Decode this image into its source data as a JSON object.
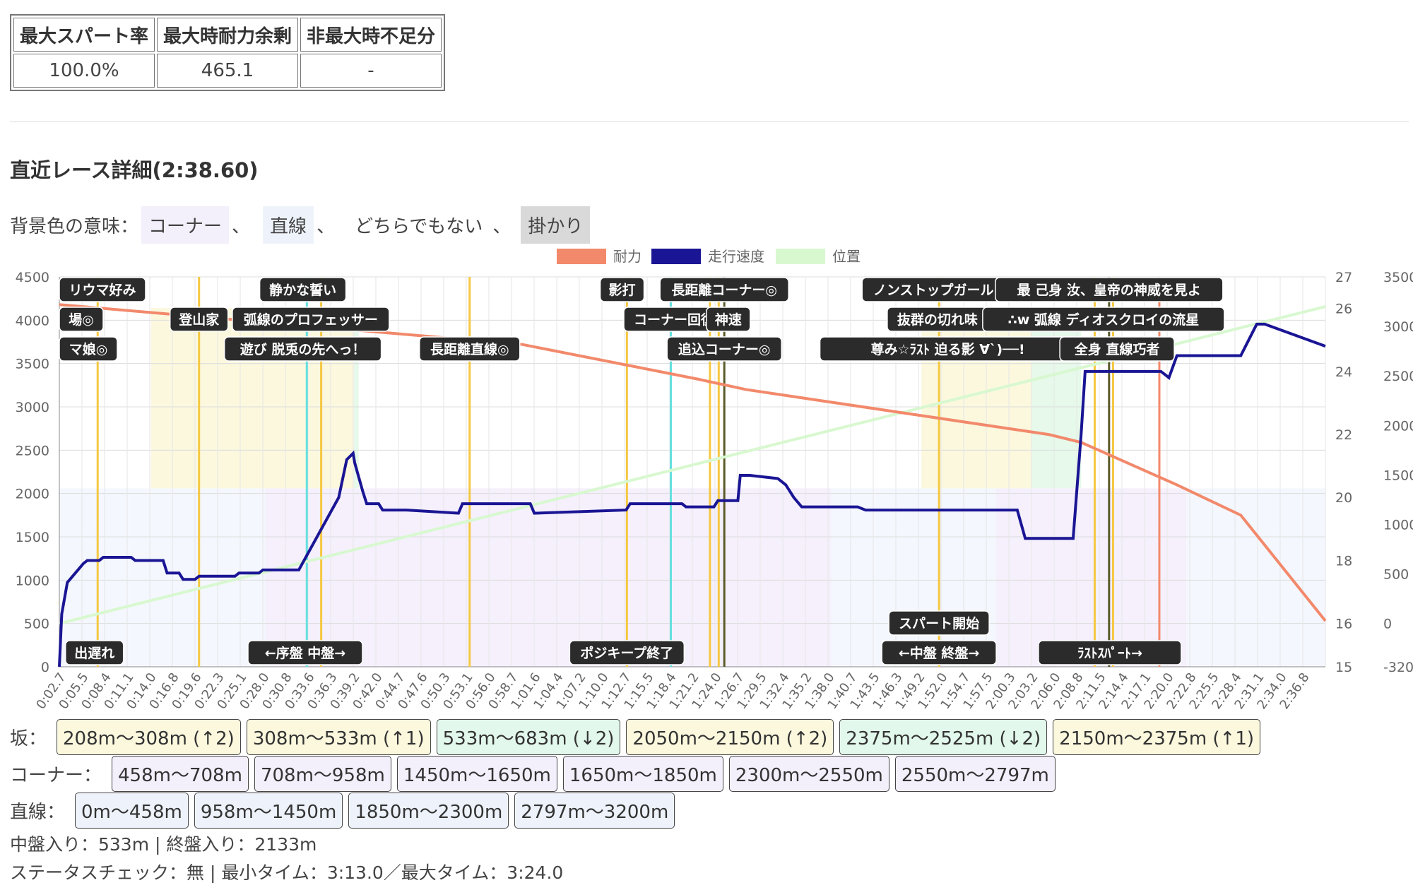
{
  "summary": {
    "headers": [
      "最大スパート率",
      "最大時耐力余剰",
      "非最大時不足分"
    ],
    "values": [
      "100.0%",
      "465.1",
      "-"
    ]
  },
  "race_title": "直近レース詳細(2:38.60)",
  "bg_legend": {
    "prefix": "背景色の意味：",
    "items": [
      {
        "label": "コーナー",
        "color": "#f3effb"
      },
      {
        "label": "直線",
        "color": "#eef3fb"
      },
      {
        "label": "どちらでもない",
        "color": "#ffffff"
      },
      {
        "label": "掛かり",
        "color": "#d9d9d9"
      }
    ],
    "sep": "、"
  },
  "chart_data": {
    "type": "line",
    "legend": [
      {
        "name": "耐力",
        "color": "#f2896b"
      },
      {
        "name": "走行速度",
        "color": "#1a1594"
      },
      {
        "name": "位置",
        "color": "#d8f8d0"
      }
    ],
    "y_left": {
      "min": 0,
      "max": 4500,
      "ticks": [
        0,
        500,
        1000,
        1500,
        2000,
        2500,
        3000,
        3500,
        4000,
        4500
      ]
    },
    "y_right_speed": {
      "ticks": [
        15,
        16,
        18,
        20,
        22,
        24,
        26,
        27
      ]
    },
    "y_right_position": {
      "ticks": [
        -320,
        0,
        500,
        1000,
        1500,
        2000,
        2500,
        3000,
        3500
      ]
    },
    "x_labels": [
      "0:02.7",
      "0:05.5",
      "0:08.4",
      "0:11.1",
      "0:14.0",
      "0:16.8",
      "0:19.6",
      "0:22.3",
      "0:25.1",
      "0:28.0",
      "0:30.8",
      "0:33.6",
      "0:36.3",
      "0:39.2",
      "0:42.0",
      "0:44.7",
      "0:47.6",
      "0:50.3",
      "0:53.1",
      "0:56.0",
      "0:58.7",
      "1:01.6",
      "1:04.4",
      "1:07.2",
      "1:10.0",
      "1:12.7",
      "1:15.5",
      "1:18.4",
      "1:21.2",
      "1:24.0",
      "1:26.7",
      "1:29.5",
      "1:32.4",
      "1:35.2",
      "1:38.0",
      "1:40.7",
      "1:43.5",
      "1:46.3",
      "1:49.2",
      "1:52.0",
      "1:54.7",
      "1:57.5",
      "2:00.3",
      "2:03.2",
      "2:06.0",
      "2:08.8",
      "2:11.5",
      "2:14.4",
      "2:17.1",
      "2:20.0",
      "2:22.8",
      "2:25.5",
      "2:28.4",
      "2:31.1",
      "2:34.0",
      "2:36.8"
    ],
    "x_range_sec": [
      0,
      158.6
    ],
    "stamina": {
      "t": [
        0,
        58,
        80,
        86,
        124,
        128,
        140,
        148,
        158.6
      ],
      "v": [
        4180,
        3720,
        3320,
        3200,
        2680,
        2590,
        2100,
        1750,
        530
      ]
    },
    "speed": {
      "t": [
        0,
        0.3,
        1,
        3,
        3.5,
        5,
        5.5,
        9,
        9.5,
        13,
        13.5,
        15,
        15.5,
        17,
        17.5,
        22,
        22.5,
        25,
        25.5,
        30,
        35,
        36,
        36.8,
        37,
        38,
        38.5,
        40,
        40.5,
        43,
        43.5,
        50,
        50.5,
        59,
        59.5,
        71,
        71.5,
        78,
        78.5,
        82,
        82.5,
        85,
        85.3,
        86.5,
        90,
        91,
        92,
        93,
        100,
        101,
        120,
        121,
        127,
        128,
        128.5,
        130,
        138,
        139,
        140,
        141,
        148,
        149,
        150,
        151,
        158.6
      ],
      "v": [
        15,
        16.3,
        17.3,
        17.9,
        18.0,
        18.0,
        18.1,
        18.1,
        18.0,
        18.0,
        17.6,
        17.6,
        17.4,
        17.4,
        17.5,
        17.5,
        17.6,
        17.6,
        17.7,
        17.7,
        20.0,
        21.2,
        21.4,
        21.1,
        20.2,
        19.8,
        19.8,
        19.6,
        19.6,
        19.6,
        19.5,
        19.8,
        19.8,
        19.5,
        19.6,
        19.8,
        19.8,
        19.7,
        19.7,
        19.9,
        19.9,
        20.7,
        20.7,
        20.6,
        20.4,
        20.0,
        19.7,
        19.7,
        19.6,
        19.6,
        18.7,
        18.7,
        22,
        24,
        24,
        24,
        23.8,
        24.5,
        24.5,
        24.5,
        25,
        25.5,
        25.5,
        24.8
      ]
    },
    "position": {
      "t": [
        0,
        158.6
      ],
      "v": [
        0,
        3200
      ]
    },
    "bands": [
      {
        "t0": 0,
        "t1": 25.8,
        "type": "straight"
      },
      {
        "t0": 25.8,
        "t1": 96.7,
        "type": "corner"
      },
      {
        "t0": 96.7,
        "t1": 117.3,
        "type": "straight"
      },
      {
        "t0": 117.3,
        "t1": 141.2,
        "type": "corner"
      },
      {
        "t0": 141.2,
        "t1": 158.6,
        "type": "straight"
      }
    ],
    "slope_bands": [
      {
        "t0": 11.5,
        "t1": 25.8,
        "type": "up"
      },
      {
        "t0": 25.8,
        "t1": 36.9,
        "type": "up"
      },
      {
        "t0": 36.9,
        "t1": 37.5,
        "type": "down"
      },
      {
        "t0": 108,
        "t1": 121.8,
        "type": "up"
      },
      {
        "t0": 121.8,
        "t1": 128,
        "type": "down"
      }
    ],
    "vlines": [
      {
        "t": 4.8,
        "color": "#f5c842"
      },
      {
        "t": 17.5,
        "color": "#f5c842"
      },
      {
        "t": 31,
        "color": "#66e0e0"
      },
      {
        "t": 32.8,
        "color": "#f5c842"
      },
      {
        "t": 51.4,
        "color": "#f5c842"
      },
      {
        "t": 71.1,
        "color": "#f5c842"
      },
      {
        "t": 76.6,
        "color": "#66e0e0"
      },
      {
        "t": 81.5,
        "color": "#f5c842"
      },
      {
        "t": 82.6,
        "color": "#f5c842"
      },
      {
        "t": 83.3,
        "color": "#5b5b2a"
      },
      {
        "t": 110.2,
        "color": "#f5c842"
      },
      {
        "t": 129.7,
        "color": "#f5c842"
      },
      {
        "t": 131.5,
        "color": "#5b5b2a"
      },
      {
        "t": 132,
        "color": "#f5c842"
      },
      {
        "t": 137.8,
        "color": "#f2896b"
      }
    ],
    "skill_labels": [
      {
        "text": "リウマ好み",
        "t": 4.2,
        "row": 0
      },
      {
        "text": "静かな誓い",
        "t": 30.5,
        "row": 0
      },
      {
        "text": "影打",
        "t": 70.5,
        "row": 0
      },
      {
        "text": "長距離コーナー◎",
        "t": 83.3,
        "row": 0
      },
      {
        "text": "ノンストップガール",
        "t": 109.5,
        "row": 0
      },
      {
        "text": "最 己身 汝、皇帝の神威を見よ",
        "t": 131.5,
        "row": 0
      },
      {
        "text": "場◎",
        "t": 2.3,
        "row": 1
      },
      {
        "text": "登山家",
        "t": 17.5,
        "row": 1
      },
      {
        "text": "弧線のプロフェッサー",
        "t": 31.5,
        "row": 1
      },
      {
        "text": "コーナー回復",
        "t": 77,
        "row": 1
      },
      {
        "text": "神速",
        "t": 83.8,
        "row": 1
      },
      {
        "text": "抜群の切れ味",
        "t": 110,
        "row": 1
      },
      {
        "text": "∴w 弧線 ディオスクロイの流星",
        "t": 130.8,
        "row": 1
      },
      {
        "text": "マ娘◎",
        "t": 2.8,
        "row": 2
      },
      {
        "text": "遊び 脱兎の先へっ！",
        "t": 30.5,
        "row": 2
      },
      {
        "text": "長距離直線◎",
        "t": 51.4,
        "row": 2
      },
      {
        "text": "追込コーナー◎",
        "t": 83.3,
        "row": 2
      },
      {
        "text": "尊み☆ﾗｽﾄ 迫る影 ∀`)──!",
        "t": 111.3,
        "row": 2
      },
      {
        "text": "全身 直線巧者",
        "t": 132.5,
        "row": 2
      }
    ],
    "phase_labels": [
      {
        "text": "出遅れ",
        "t": 4.4,
        "row": "bottom"
      },
      {
        "text": "←序盤 中盤→",
        "t": 30.8,
        "row": "bottom"
      },
      {
        "text": "ポジキープ終了",
        "t": 71.1,
        "row": "bottom"
      },
      {
        "text": "スパート開始",
        "t": 110.2,
        "row": "upper"
      },
      {
        "text": "←中盤 終盤→",
        "t": 110.2,
        "row": "bottom"
      },
      {
        "text": "ﾗｽﾄｽﾊﾟｰﾄ→",
        "t": 131.6,
        "row": "bottom"
      }
    ]
  },
  "slopes": {
    "label": "坂：",
    "items": [
      "208m〜308m (↑2)",
      "308m〜533m (↑1)",
      "533m〜683m (↓2)",
      "2050m〜2150m (↑2)",
      "2375m〜2525m (↓2)",
      "2150m〜2375m (↑1)"
    ]
  },
  "corners": {
    "label": "コーナー：",
    "items": [
      "458m〜708m",
      "708m〜958m",
      "1450m〜1650m",
      "1650m〜1850m",
      "2300m〜2550m",
      "2550m〜2797m"
    ]
  },
  "straights": {
    "label": "直線：",
    "items": [
      "0m〜458m",
      "958m〜1450m",
      "1850m〜2300m",
      "2797m〜3200m"
    ]
  },
  "phase_info": "中盤入り：533m | 終盤入り：2133m",
  "status_info": "ステータスチェック：無 | 最小タイム：3:13.0／最大タイム：3:24.0",
  "colors": {
    "up_slope": "#fbf8de",
    "down_slope": "#e6f9ea",
    "up_chip": "#fbf8de",
    "down_chip": "#e3f8ec",
    "corner_chip": "#f3effb",
    "straight_chip": "#eef3fb"
  }
}
